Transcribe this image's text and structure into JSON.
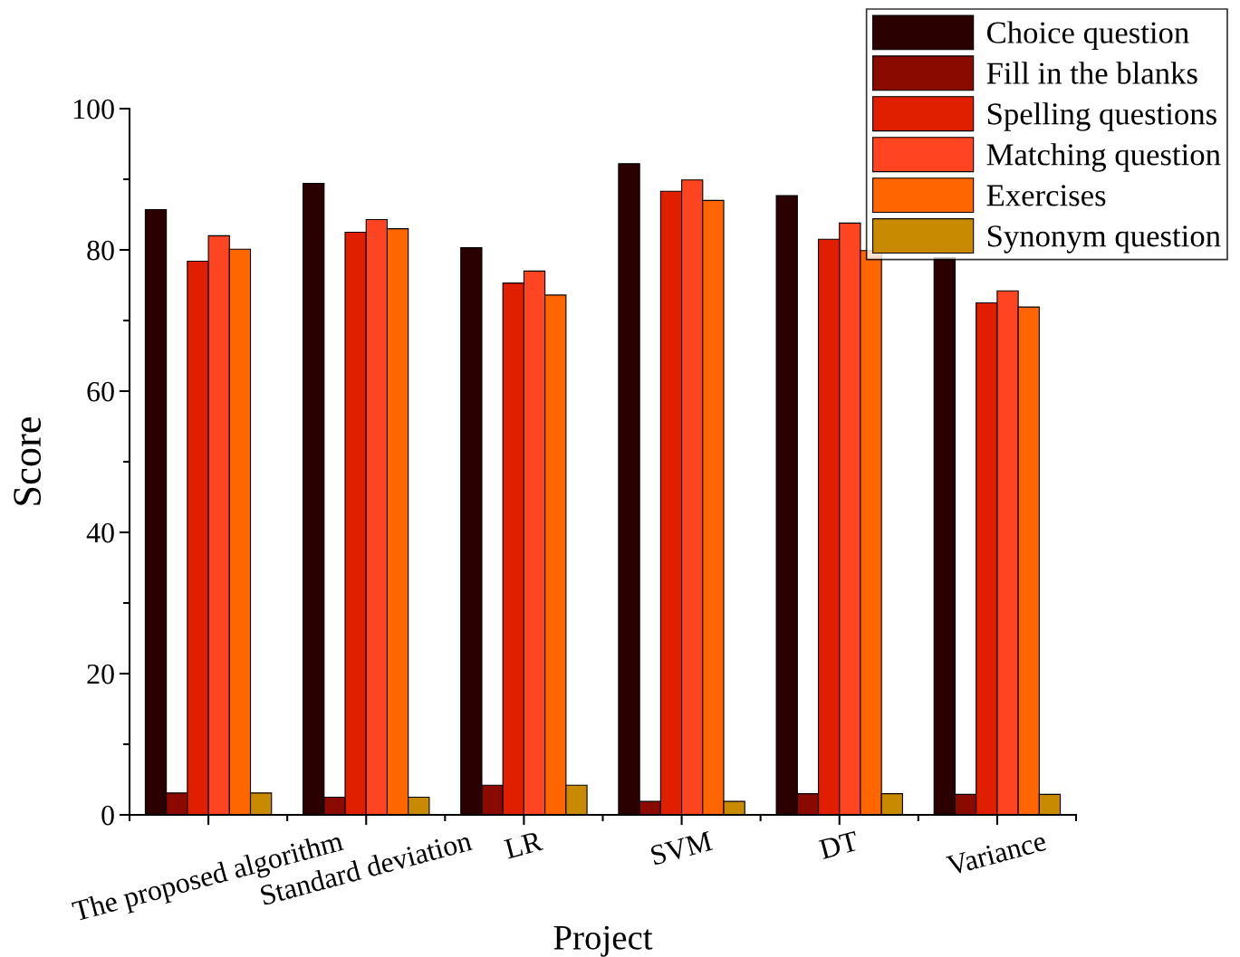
{
  "chart_data": {
    "type": "bar",
    "xlabel": "Project",
    "ylabel": "Score",
    "categories": [
      "The proposed algorithm",
      "Standard deviation",
      "LR",
      "SVM",
      "DT",
      "Variance"
    ],
    "series": [
      {
        "name": "Choice question",
        "color": "#2b0000",
        "values": [
          85.7,
          89.4,
          80.3,
          92.2,
          87.7,
          78.9
        ]
      },
      {
        "name": "Fill in the blanks",
        "color": "#8b0a00",
        "values": [
          3.1,
          2.5,
          4.2,
          1.9,
          3.0,
          2.9
        ]
      },
      {
        "name": "Spelling questions",
        "color": "#e01e00",
        "values": [
          78.4,
          82.5,
          75.3,
          88.3,
          81.5,
          72.5
        ]
      },
      {
        "name": "Matching question",
        "color": "#ff4422",
        "values": [
          82.0,
          84.3,
          77.0,
          89.9,
          83.8,
          74.2
        ]
      },
      {
        "name": "Exercises",
        "color": "#ff6600",
        "values": [
          80.1,
          83.0,
          73.6,
          87.0,
          79.9,
          71.9
        ]
      },
      {
        "name": "Synonym question",
        "color": "#c88a00",
        "values": [
          3.1,
          2.5,
          4.2,
          1.9,
          3.0,
          2.9
        ]
      }
    ],
    "ylim": [
      0,
      100
    ],
    "yticks": [
      0,
      20,
      40,
      60,
      80,
      100
    ],
    "grid": false,
    "legend": "top right"
  }
}
